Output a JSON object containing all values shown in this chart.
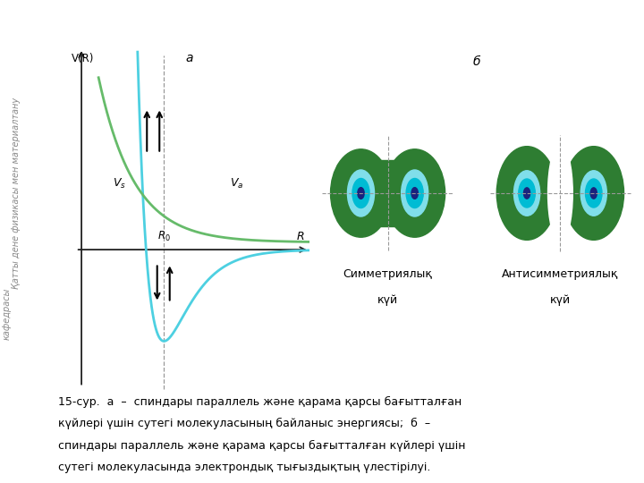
{
  "bg_color": "#ffffff",
  "title_a": "a",
  "title_b": "б",
  "graph_label_VR": "V(R)",
  "graph_label_R": "R",
  "graph_label_R0": "R₀",
  "sym_label_line1": "Симметриялық",
  "sym_label_line2": "күй",
  "antisym_label_line1": "Антисимметриялық",
  "antisym_label_line2": "күй",
  "side_text1": "Қатты дене физикасы мен материалтану",
  "side_text2": "кафедрасы",
  "cap1": "15-сур.  а  –  спиндары параллель және қарама қарсы бағытталған",
  "cap2": "күйлері үшін сутегі молекуласының байланыс энергиясы;  б  –",
  "cap3": "спиндары параллель және қарама қарсы бағытталған күйлері үшін",
  "cap4": "сутегі молекуласында электрондық тығыздықтың үлестірілуі.",
  "green_dark": "#2e7d32",
  "green_mid": "#388e3c",
  "cyan_outer": "#80deea",
  "cyan_inner": "#00bcd4",
  "blue_dot": "#1a237e",
  "line_Vs": "#4dd0e1",
  "line_Va": "#66bb6a",
  "axis_color": "#222222",
  "dash_color": "#999999"
}
